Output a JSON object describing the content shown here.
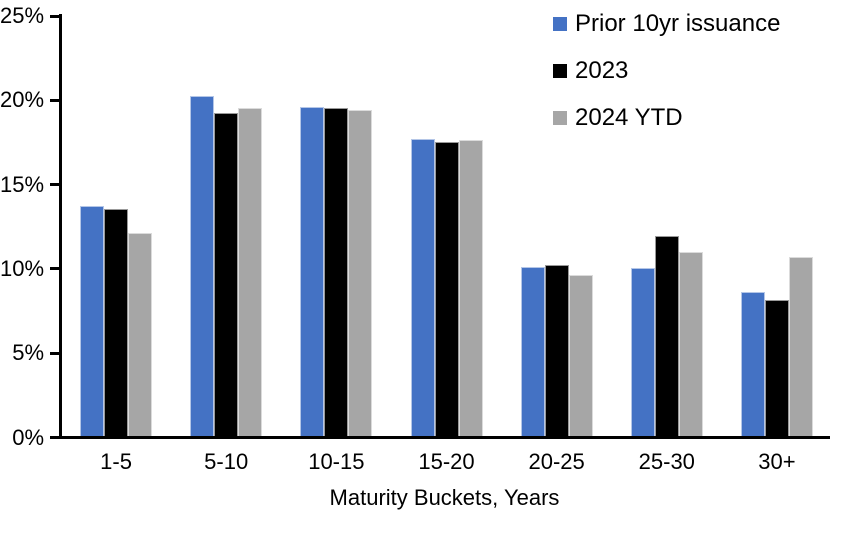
{
  "figure": {
    "background": "#FFFFFF",
    "axis_color": "#000000",
    "text_color": "#000000"
  },
  "chart_data": {
    "type": "bar",
    "title": "",
    "categories": [
      "1-5",
      "5-10",
      "10-15",
      "15-20",
      "20-25",
      "25-30",
      "30+"
    ],
    "series": [
      {
        "name": "Prior 10yr issuance",
        "color": "#4472C4",
        "values": [
          13.7,
          20.2,
          19.6,
          17.7,
          10.1,
          10.0,
          8.6
        ]
      },
      {
        "name": "2023",
        "color": "#000000",
        "values": [
          13.5,
          19.2,
          19.5,
          17.5,
          10.2,
          11.9,
          8.1
        ]
      },
      {
        "name": "2024 YTD",
        "color": "#A6A6A6",
        "values": [
          12.1,
          19.5,
          19.4,
          17.6,
          9.6,
          11.0,
          10.7
        ]
      }
    ],
    "xlabel": "Maturity Buckets, Years",
    "ylabel": "",
    "ylim": [
      0,
      25
    ],
    "yticks": [
      0,
      5,
      10,
      15,
      20,
      25
    ],
    "ytick_labels": [
      "0%",
      "5%",
      "10%",
      "15%",
      "20%",
      "25%"
    ],
    "grid": false,
    "legend_position": "top-right"
  }
}
